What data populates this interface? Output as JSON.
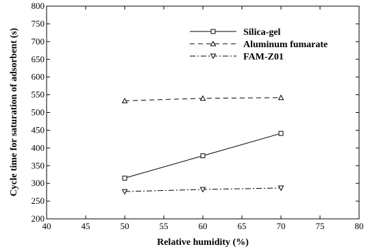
{
  "chart_data": {
    "type": "line",
    "xlabel": "Relative humidity (%)",
    "ylabel": "Cycle time for saturation of adsorbent (s)",
    "xlim": [
      40,
      80
    ],
    "ylim": [
      200,
      800
    ],
    "xticks": [
      40,
      45,
      50,
      55,
      60,
      65,
      70,
      75,
      80
    ],
    "yticks": [
      200,
      250,
      300,
      350,
      400,
      450,
      500,
      550,
      600,
      650,
      700,
      750,
      800
    ],
    "grid": false,
    "legend_position": "top-right",
    "x": [
      50,
      60,
      70
    ],
    "series": [
      {
        "name": "Silica-gel",
        "values": [
          315,
          378,
          441
        ],
        "line_style": "solid",
        "marker": "square"
      },
      {
        "name": "Aluminum fumarate",
        "values": [
          533,
          540,
          542
        ],
        "line_style": "dashed",
        "marker": "triangle-up"
      },
      {
        "name": "FAM-Z01",
        "values": [
          277,
          283,
          287
        ],
        "line_style": "dash-dot",
        "marker": "triangle-down"
      }
    ]
  }
}
